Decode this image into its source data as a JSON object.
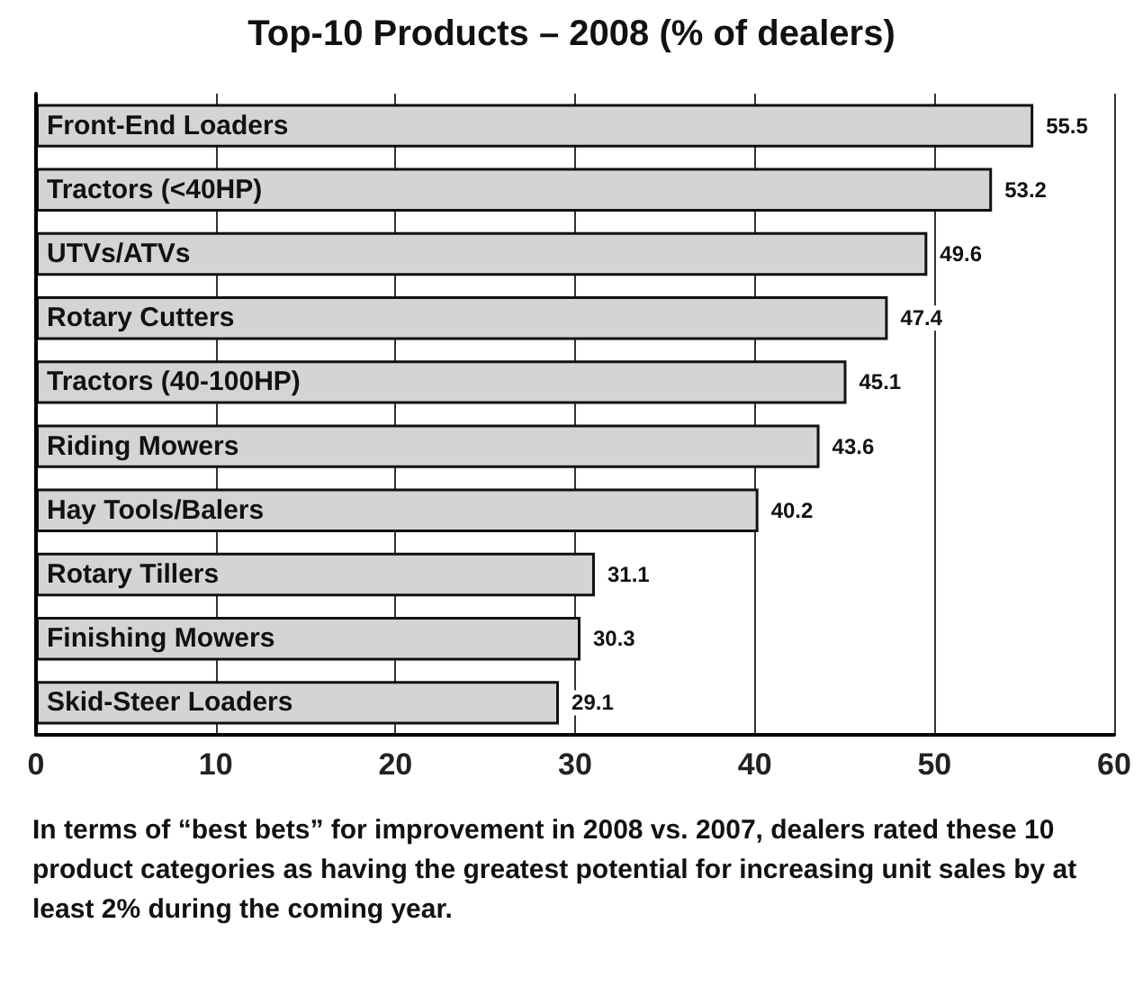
{
  "chart_data": {
    "type": "bar",
    "orientation": "horizontal",
    "title": "Top-10 Products – 2008 (% of dealers)",
    "categories": [
      "Front-End Loaders",
      "Tractors (<40HP)",
      "UTVs/ATVs",
      "Rotary Cutters",
      "Tractors (40-100HP)",
      "Riding Mowers",
      "Hay Tools/Balers",
      "Rotary Tillers",
      "Finishing Mowers",
      "Skid-Steer Loaders"
    ],
    "values": [
      55.5,
      53.2,
      49.6,
      47.4,
      45.1,
      43.6,
      40.2,
      31.1,
      30.3,
      29.1
    ],
    "color": "#d4d4d4",
    "xlim": [
      0,
      60
    ],
    "xticks": [
      0,
      10,
      20,
      30,
      40,
      50,
      60
    ],
    "grid": "x",
    "data_labels": true,
    "annotations": [
      "In terms of “best bets” for improvement in 2008 vs. 2007, dealers rated these 10 product categories as having the greatest potential for increasing unit sales by at least 2% during the coming year."
    ]
  }
}
